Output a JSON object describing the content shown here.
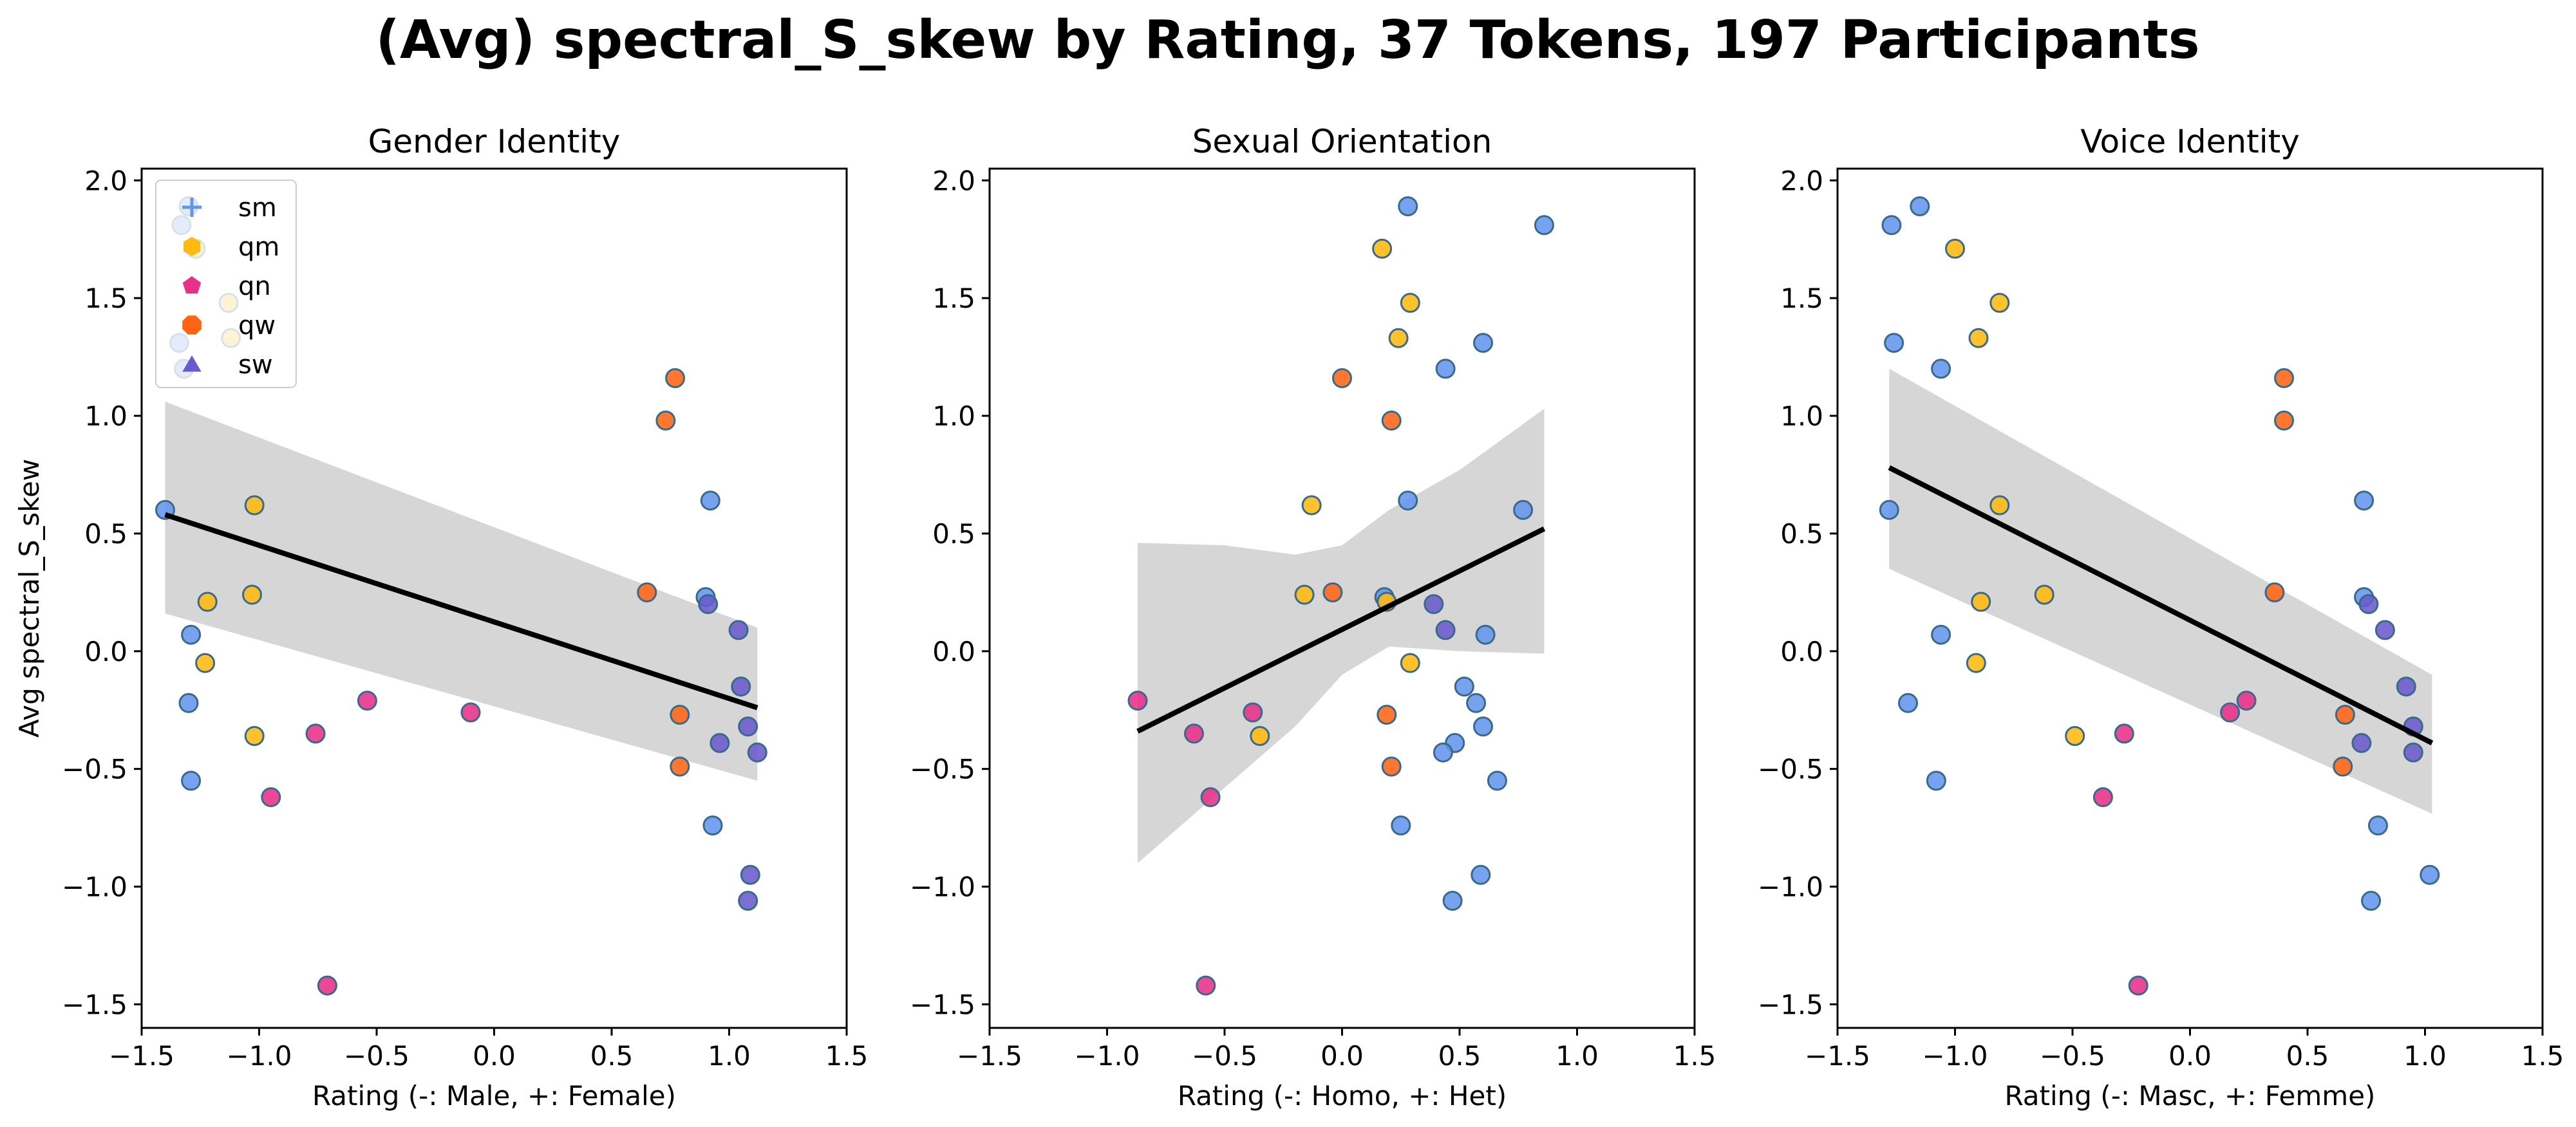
{
  "figure_title": "(Avg) spectral_S_skew by Rating, 37 Tokens, 197 Participants",
  "colors": {
    "sm": "#6495ED",
    "qm": "#FFB90F",
    "qn": "#E8308A",
    "qw": "#FF6414",
    "sw": "#6A5ACD",
    "ci_band": "#d6d6d6",
    "fit_line": "#000000",
    "marker_edge": "#3a6a8a"
  },
  "legend": {
    "placement": "upper-left of first panel",
    "entries": [
      {
        "key": "sm",
        "label": "sm",
        "marker": "plus"
      },
      {
        "key": "qm",
        "label": "qm",
        "marker": "hexagon"
      },
      {
        "key": "qn",
        "label": "qn",
        "marker": "pentagon"
      },
      {
        "key": "qw",
        "label": "qw",
        "marker": "octagon"
      },
      {
        "key": "sw",
        "label": "sw",
        "marker": "triangle"
      }
    ]
  },
  "chart_data": [
    {
      "type": "scatter",
      "title": "Gender Identity",
      "xlabel": "Rating (-: Male, +: Female)",
      "ylabel": "Avg spectral_S_skew",
      "xlim": [
        -1.5,
        1.5
      ],
      "ylim": [
        -1.6,
        2.05
      ],
      "xticks": [
        "−1.5",
        "−1.0",
        "−0.5",
        "0.0",
        "0.5",
        "1.0",
        "1.5"
      ],
      "yticks": [
        "−1.5",
        "−1.0",
        "−0.5",
        "0.0",
        "0.5",
        "1.0",
        "1.5",
        "2.0"
      ],
      "legend": true,
      "fit": {
        "x": [
          -1.4,
          1.12
        ],
        "y": [
          0.58,
          -0.24
        ]
      },
      "ci": {
        "x": [
          -1.4,
          1.12
        ],
        "upper": [
          1.06,
          0.1
        ],
        "lower": [
          0.16,
          -0.55
        ]
      },
      "points": [
        {
          "x": -1.33,
          "y": 1.81,
          "g": "sm"
        },
        {
          "x": -1.3,
          "y": 1.89,
          "g": "sm"
        },
        {
          "x": -1.34,
          "y": 1.31,
          "g": "sm"
        },
        {
          "x": -1.32,
          "y": 1.2,
          "g": "sm"
        },
        {
          "x": -1.4,
          "y": 0.6,
          "g": "sm"
        },
        {
          "x": -1.29,
          "y": 0.07,
          "g": "sm"
        },
        {
          "x": -1.3,
          "y": -0.22,
          "g": "sm"
        },
        {
          "x": -1.29,
          "y": -0.55,
          "g": "sm"
        },
        {
          "x": -1.27,
          "y": 1.71,
          "g": "qm"
        },
        {
          "x": -1.13,
          "y": 1.48,
          "g": "qm"
        },
        {
          "x": -1.12,
          "y": 1.33,
          "g": "qm"
        },
        {
          "x": -1.02,
          "y": 0.62,
          "g": "qm"
        },
        {
          "x": -1.22,
          "y": 0.21,
          "g": "qm"
        },
        {
          "x": -1.03,
          "y": 0.24,
          "g": "qm"
        },
        {
          "x": -1.23,
          "y": -0.05,
          "g": "qm"
        },
        {
          "x": -1.02,
          "y": -0.36,
          "g": "qm"
        },
        {
          "x": -0.76,
          "y": -0.35,
          "g": "qn"
        },
        {
          "x": -0.95,
          "y": -0.62,
          "g": "qn"
        },
        {
          "x": -0.54,
          "y": -0.21,
          "g": "qn"
        },
        {
          "x": -0.1,
          "y": -0.26,
          "g": "qn"
        },
        {
          "x": -0.71,
          "y": -1.42,
          "g": "qn"
        },
        {
          "x": 0.77,
          "y": 1.16,
          "g": "qw"
        },
        {
          "x": 0.73,
          "y": 0.98,
          "g": "qw"
        },
        {
          "x": 0.65,
          "y": 0.25,
          "g": "qw"
        },
        {
          "x": 0.79,
          "y": -0.27,
          "g": "qw"
        },
        {
          "x": 0.79,
          "y": -0.49,
          "g": "qw"
        },
        {
          "x": 0.92,
          "y": 0.64,
          "g": "sm"
        },
        {
          "x": 0.9,
          "y": 0.23,
          "g": "sm"
        },
        {
          "x": 0.93,
          "y": -0.74,
          "g": "sm"
        },
        {
          "x": 0.91,
          "y": 0.2,
          "g": "sw"
        },
        {
          "x": 1.04,
          "y": 0.09,
          "g": "sw"
        },
        {
          "x": 1.05,
          "y": -0.15,
          "g": "sw"
        },
        {
          "x": 1.08,
          "y": -0.32,
          "g": "sw"
        },
        {
          "x": 0.96,
          "y": -0.39,
          "g": "sw"
        },
        {
          "x": 1.12,
          "y": -0.43,
          "g": "sw"
        },
        {
          "x": 1.09,
          "y": -0.95,
          "g": "sw"
        },
        {
          "x": 1.08,
          "y": -1.06,
          "g": "sw"
        }
      ]
    },
    {
      "type": "scatter",
      "title": "Sexual Orientation",
      "xlabel": "Rating (-: Homo, +: Het)",
      "ylabel": "",
      "xlim": [
        -1.5,
        1.5
      ],
      "ylim": [
        -1.6,
        2.05
      ],
      "xticks": [
        "−1.5",
        "−1.0",
        "−0.5",
        "0.0",
        "0.5",
        "1.0",
        "1.5"
      ],
      "yticks": [
        "−1.5",
        "−1.0",
        "−0.5",
        "0.0",
        "0.5",
        "1.0",
        "1.5",
        "2.0"
      ],
      "legend": false,
      "fit": {
        "x": [
          -0.87,
          0.86
        ],
        "y": [
          -0.34,
          0.52
        ]
      },
      "ci": {
        "x": [
          -0.87,
          -0.5,
          -0.2,
          0.0,
          0.2,
          0.5,
          0.86
        ],
        "upper": [
          0.46,
          0.45,
          0.41,
          0.45,
          0.6,
          0.77,
          1.03
        ],
        "lower": [
          -0.9,
          -0.58,
          -0.32,
          -0.1,
          0.02,
          0.0,
          -0.01
        ]
      },
      "points": [
        {
          "x": 0.28,
          "y": 1.89,
          "g": "sm"
        },
        {
          "x": 0.86,
          "y": 1.81,
          "g": "sm"
        },
        {
          "x": 0.6,
          "y": 1.31,
          "g": "sm"
        },
        {
          "x": 0.44,
          "y": 1.2,
          "g": "sm"
        },
        {
          "x": 0.28,
          "y": 0.64,
          "g": "sm"
        },
        {
          "x": 0.77,
          "y": 0.6,
          "g": "sm"
        },
        {
          "x": 0.18,
          "y": 0.23,
          "g": "sm"
        },
        {
          "x": 0.61,
          "y": 0.07,
          "g": "sm"
        },
        {
          "x": 0.52,
          "y": -0.15,
          "g": "sm"
        },
        {
          "x": 0.57,
          "y": -0.22,
          "g": "sm"
        },
        {
          "x": 0.6,
          "y": -0.32,
          "g": "sm"
        },
        {
          "x": 0.48,
          "y": -0.39,
          "g": "sm"
        },
        {
          "x": 0.43,
          "y": -0.43,
          "g": "sm"
        },
        {
          "x": 0.66,
          "y": -0.55,
          "g": "sm"
        },
        {
          "x": 0.25,
          "y": -0.74,
          "g": "sm"
        },
        {
          "x": 0.59,
          "y": -0.95,
          "g": "sm"
        },
        {
          "x": 0.47,
          "y": -1.06,
          "g": "sm"
        },
        {
          "x": 0.17,
          "y": 1.71,
          "g": "qm"
        },
        {
          "x": 0.29,
          "y": 1.48,
          "g": "qm"
        },
        {
          "x": 0.24,
          "y": 1.33,
          "g": "qm"
        },
        {
          "x": -0.13,
          "y": 0.62,
          "g": "qm"
        },
        {
          "x": -0.16,
          "y": 0.24,
          "g": "qm"
        },
        {
          "x": 0.19,
          "y": 0.21,
          "g": "qm"
        },
        {
          "x": 0.29,
          "y": -0.05,
          "g": "qm"
        },
        {
          "x": -0.35,
          "y": -0.36,
          "g": "qm"
        },
        {
          "x": 0.0,
          "y": 1.16,
          "g": "qw"
        },
        {
          "x": 0.21,
          "y": 0.98,
          "g": "qw"
        },
        {
          "x": -0.04,
          "y": 0.25,
          "g": "qw"
        },
        {
          "x": 0.19,
          "y": -0.27,
          "g": "qw"
        },
        {
          "x": 0.21,
          "y": -0.49,
          "g": "qw"
        },
        {
          "x": -0.87,
          "y": -0.21,
          "g": "qn"
        },
        {
          "x": -0.63,
          "y": -0.35,
          "g": "qn"
        },
        {
          "x": -0.38,
          "y": -0.26,
          "g": "qn"
        },
        {
          "x": -0.56,
          "y": -0.62,
          "g": "qn"
        },
        {
          "x": -0.58,
          "y": -1.42,
          "g": "qn"
        },
        {
          "x": 0.39,
          "y": 0.2,
          "g": "sw"
        },
        {
          "x": 0.44,
          "y": 0.09,
          "g": "sw"
        }
      ]
    },
    {
      "type": "scatter",
      "title": "Voice Identity",
      "xlabel": "Rating (-: Masc, +: Femme)",
      "ylabel": "",
      "xlim": [
        -1.5,
        1.5
      ],
      "ylim": [
        -1.6,
        2.05
      ],
      "xticks": [
        "−1.5",
        "−1.0",
        "−0.5",
        "0.0",
        "0.5",
        "1.0",
        "1.5"
      ],
      "yticks": [
        "−1.5",
        "−1.0",
        "−0.5",
        "0.0",
        "0.5",
        "1.0",
        "1.5",
        "2.0"
      ],
      "legend": false,
      "fit": {
        "x": [
          -1.28,
          1.03
        ],
        "y": [
          0.78,
          -0.39
        ]
      },
      "ci": {
        "x": [
          -1.28,
          1.03
        ],
        "upper": [
          1.2,
          -0.1
        ],
        "lower": [
          0.35,
          -0.69
        ]
      },
      "points": [
        {
          "x": -1.27,
          "y": 1.81,
          "g": "sm"
        },
        {
          "x": -1.15,
          "y": 1.89,
          "g": "sm"
        },
        {
          "x": -1.26,
          "y": 1.31,
          "g": "sm"
        },
        {
          "x": -1.06,
          "y": 1.2,
          "g": "sm"
        },
        {
          "x": -1.28,
          "y": 0.6,
          "g": "sm"
        },
        {
          "x": -1.06,
          "y": 0.07,
          "g": "sm"
        },
        {
          "x": -1.2,
          "y": -0.22,
          "g": "sm"
        },
        {
          "x": -1.08,
          "y": -0.55,
          "g": "sm"
        },
        {
          "x": 0.74,
          "y": 0.64,
          "g": "sm"
        },
        {
          "x": 0.74,
          "y": 0.23,
          "g": "sm"
        },
        {
          "x": 0.8,
          "y": -0.74,
          "g": "sm"
        },
        {
          "x": 0.77,
          "y": -1.06,
          "g": "sm"
        },
        {
          "x": 1.02,
          "y": -0.95,
          "g": "sm"
        },
        {
          "x": -1.0,
          "y": 1.71,
          "g": "qm"
        },
        {
          "x": -0.81,
          "y": 1.48,
          "g": "qm"
        },
        {
          "x": -0.9,
          "y": 1.33,
          "g": "qm"
        },
        {
          "x": -0.81,
          "y": 0.62,
          "g": "qm"
        },
        {
          "x": -0.62,
          "y": 0.24,
          "g": "qm"
        },
        {
          "x": -0.89,
          "y": 0.21,
          "g": "qm"
        },
        {
          "x": -0.91,
          "y": -0.05,
          "g": "qm"
        },
        {
          "x": -0.49,
          "y": -0.36,
          "g": "qm"
        },
        {
          "x": 0.4,
          "y": 1.16,
          "g": "qw"
        },
        {
          "x": 0.4,
          "y": 0.98,
          "g": "qw"
        },
        {
          "x": 0.36,
          "y": 0.25,
          "g": "qw"
        },
        {
          "x": 0.66,
          "y": -0.27,
          "g": "qw"
        },
        {
          "x": 0.65,
          "y": -0.49,
          "g": "qw"
        },
        {
          "x": -0.28,
          "y": -0.35,
          "g": "qn"
        },
        {
          "x": -0.37,
          "y": -0.62,
          "g": "qn"
        },
        {
          "x": 0.17,
          "y": -0.26,
          "g": "qn"
        },
        {
          "x": 0.24,
          "y": -0.21,
          "g": "qn"
        },
        {
          "x": -0.22,
          "y": -1.42,
          "g": "qn"
        },
        {
          "x": 0.76,
          "y": 0.2,
          "g": "sw"
        },
        {
          "x": 0.83,
          "y": 0.09,
          "g": "sw"
        },
        {
          "x": 0.92,
          "y": -0.15,
          "g": "sw"
        },
        {
          "x": 0.95,
          "y": -0.32,
          "g": "sw"
        },
        {
          "x": 0.73,
          "y": -0.39,
          "g": "sw"
        },
        {
          "x": 0.95,
          "y": -0.43,
          "g": "sw"
        }
      ]
    }
  ]
}
